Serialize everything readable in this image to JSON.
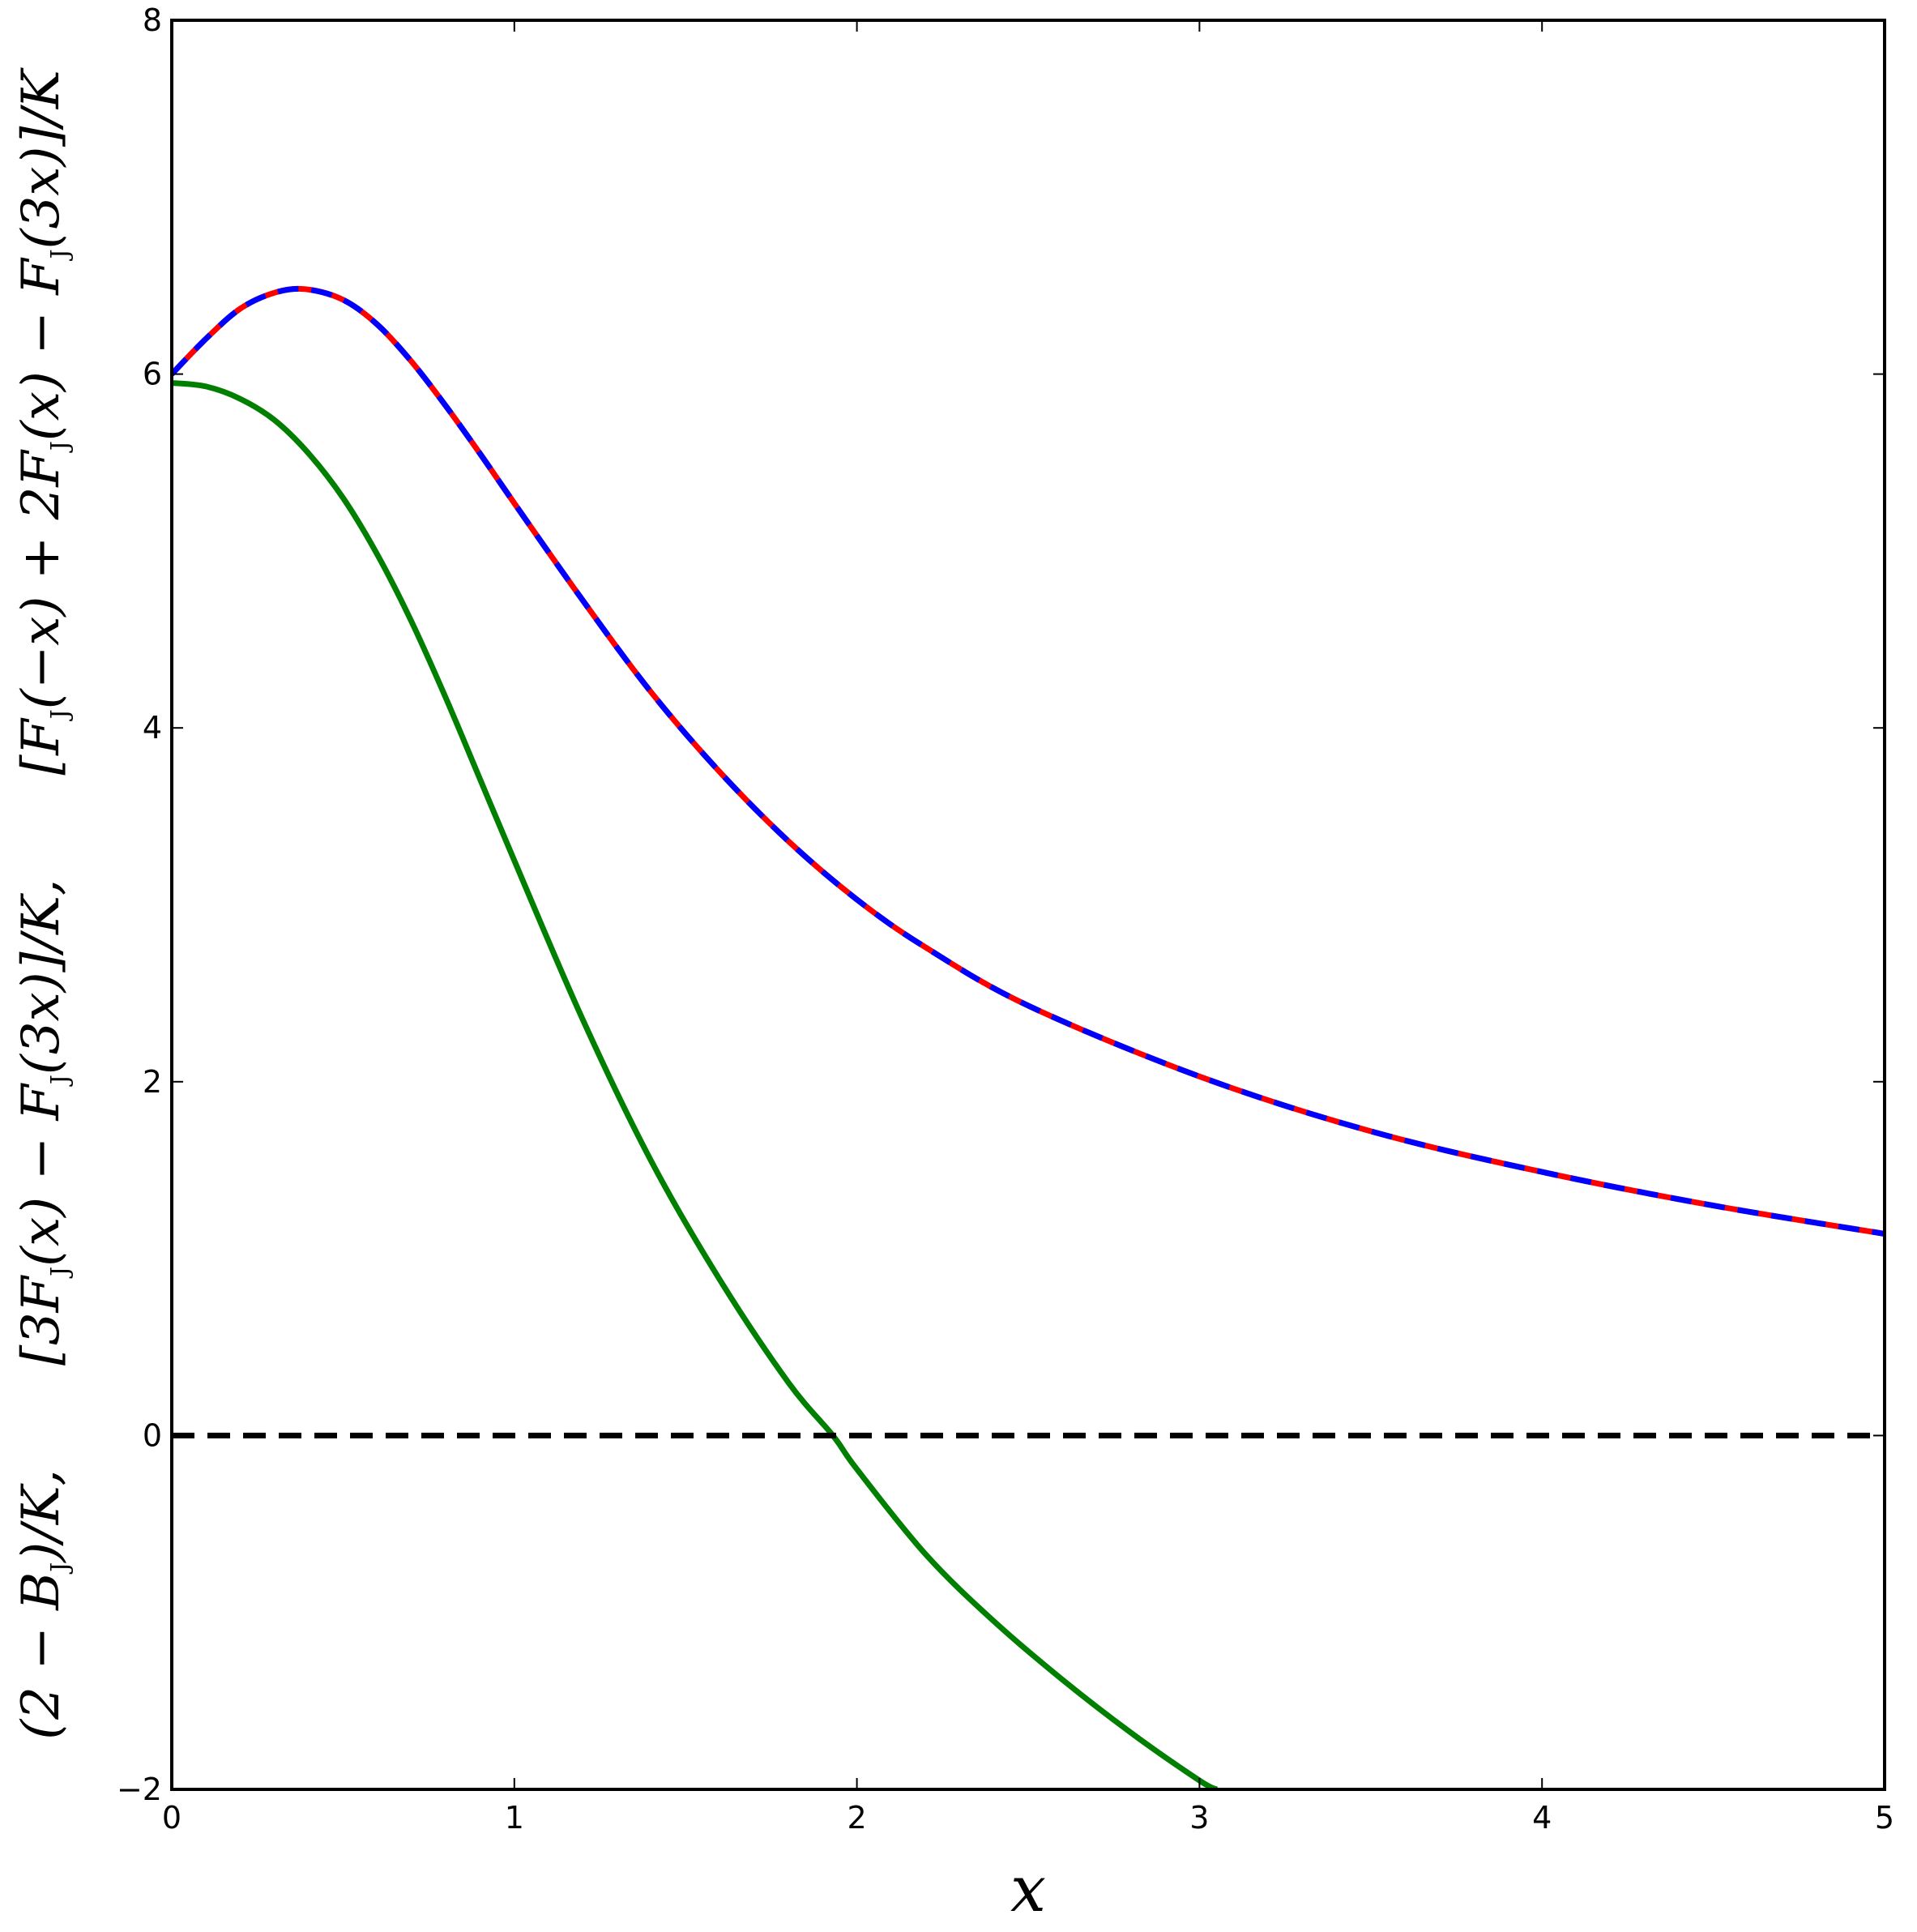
{
  "chart_data": {
    "type": "line",
    "xlabel": "x",
    "ylabel": "(2 − Bⱼ)/K,    [3Fⱼ(x) − Fⱼ(3x)]/K,    [Fⱼ(−x) + 2Fⱼ(x) − Fⱼ(3x)]/K",
    "ylabel_parts": [
      {
        "base": "(2 − B",
        "sub": "J",
        "rest": ")/K,"
      },
      {
        "base": "[3F",
        "sub": "J",
        "rest": "(x) − F"
      },
      {
        "base": "",
        "sub": "J",
        "rest": "(3x)]/K,"
      },
      {
        "base": "[F",
        "sub": "J",
        "rest": "(−x) + 2F"
      },
      {
        "base": "",
        "sub": "J",
        "rest": "(x) − F"
      },
      {
        "base": "",
        "sub": "J",
        "rest": "(3x)]/K"
      }
    ],
    "xlim": [
      0,
      5
    ],
    "ylim": [
      -2,
      8
    ],
    "xticks": [
      0,
      1,
      2,
      3,
      4,
      5
    ],
    "xtick_labels": [
      "0",
      "1",
      "2",
      "3",
      "4",
      "5"
    ],
    "yticks": [
      -2,
      0,
      2,
      4,
      6,
      8
    ],
    "ytick_labels": [
      "−2",
      "0",
      "2",
      "4",
      "6",
      "8"
    ],
    "grid": false,
    "series": [
      {
        "color": "#ff0000",
        "style": "solid",
        "x": [
          0,
          0.1,
          0.2,
          0.3,
          0.39,
          0.5,
          0.6,
          0.7,
          0.8,
          0.9,
          1.0,
          1.2,
          1.4,
          1.6,
          1.8,
          2.0,
          2.2,
          2.5,
          3.0,
          3.5,
          4.0,
          4.5,
          5.0
        ],
        "y": [
          6.0,
          6.2,
          6.37,
          6.46,
          6.48,
          6.42,
          6.28,
          6.07,
          5.82,
          5.55,
          5.27,
          4.72,
          4.2,
          3.75,
          3.36,
          3.03,
          2.76,
          2.43,
          2.03,
          1.72,
          1.49,
          1.3,
          1.14
        ]
      },
      {
        "color": "#0000ff",
        "style": "dashed",
        "x": [
          0,
          0.1,
          0.2,
          0.3,
          0.39,
          0.5,
          0.6,
          0.7,
          0.8,
          0.9,
          1.0,
          1.2,
          1.4,
          1.6,
          1.8,
          2.0,
          2.2,
          2.5,
          3.0,
          3.5,
          4.0,
          4.5,
          5.0
        ],
        "y": [
          6.0,
          6.2,
          6.37,
          6.46,
          6.48,
          6.42,
          6.28,
          6.07,
          5.82,
          5.55,
          5.27,
          4.72,
          4.2,
          3.75,
          3.36,
          3.03,
          2.76,
          2.43,
          2.03,
          1.72,
          1.49,
          1.3,
          1.14
        ]
      },
      {
        "color": "#007f00",
        "style": "solid",
        "x": [
          0,
          0.1,
          0.2,
          0.3,
          0.4,
          0.5,
          0.6,
          0.7,
          0.8,
          0.9,
          1.0,
          1.2,
          1.4,
          1.6,
          1.8,
          1.93,
          2.0,
          2.2,
          2.4,
          2.6,
          2.8,
          3.0,
          3.05
        ],
        "y": [
          5.95,
          5.93,
          5.86,
          5.74,
          5.55,
          5.3,
          4.98,
          4.6,
          4.17,
          3.71,
          3.25,
          2.35,
          1.55,
          0.88,
          0.3,
          0.0,
          -0.19,
          -0.67,
          -1.05,
          -1.38,
          -1.68,
          -1.95,
          -2.0
        ]
      },
      {
        "color": "#000000",
        "style": "dashed",
        "x": [
          0,
          5
        ],
        "y": [
          0,
          0
        ]
      }
    ]
  }
}
